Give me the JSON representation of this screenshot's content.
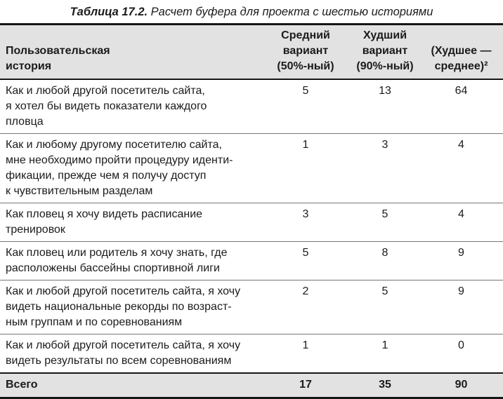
{
  "title": {
    "label": "Таблица 17.2.",
    "caption": "Расчет буфера для проекта с шестью историями"
  },
  "table": {
    "headers": {
      "story": "Пользовательская\nистория",
      "average": "Средний\nвариант\n(50%-ный)",
      "worst": "Худший\nвариант\n(90%-ный)",
      "diff_squared": "(Худшее —\nсреднее)²"
    },
    "rows": [
      {
        "story": "Как и любой другой посетитель сайта,\nя хотел бы видеть показатели каждого\nпловца",
        "average": "5",
        "worst": "13",
        "diff_squared": "64"
      },
      {
        "story": "Как и любому другому посетителю сайта,\nмне необходимо пройти процедуру иденти-\nфикации, прежде чем я получу доступ\nк чувствительным разделам",
        "average": "1",
        "worst": "3",
        "diff_squared": "4"
      },
      {
        "story": "Как пловец я хочу видеть расписание\nтренировок",
        "average": "3",
        "worst": "5",
        "diff_squared": "4"
      },
      {
        "story": "Как пловец или родитель я хочу знать, где\nрасположены бассейны спортивной лиги",
        "average": "5",
        "worst": "8",
        "diff_squared": "9"
      },
      {
        "story": "Как и любой другой посетитель сайта, я хочу\nвидеть национальные рекорды по возраст-\nным группам и по соревнованиям",
        "average": "2",
        "worst": "5",
        "diff_squared": "9"
      },
      {
        "story": "Как и любой другой посетитель сайта, я хочу\nвидеть результаты по всем соревнованиям",
        "average": "1",
        "worst": "1",
        "diff_squared": "0"
      }
    ],
    "footer": {
      "label": "Всего",
      "average": "17",
      "worst": "35",
      "diff_squared": "90"
    }
  },
  "colors": {
    "header_bg": "#e2e2e2",
    "border_heavy": "#161616",
    "border_light": "#777777",
    "text": "#1b1b1b"
  }
}
